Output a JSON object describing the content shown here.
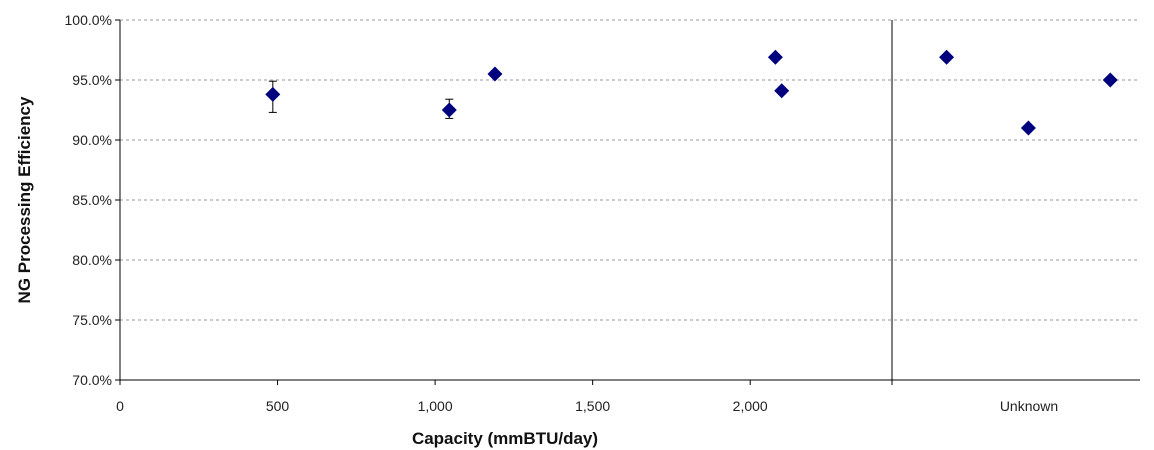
{
  "chart_data": {
    "type": "scatter",
    "xlabel": "Capacity (mmBTU/day)",
    "ylabel": "NG Processing Efficiency",
    "xlim": [
      0,
      2450
    ],
    "ylim": [
      70.0,
      100.0
    ],
    "x_ticks": [
      0,
      500,
      1000,
      1500,
      2000
    ],
    "x_tick_labels": [
      "0",
      "500",
      "1,000",
      "1,500",
      "2,000"
    ],
    "y_ticks": [
      70.0,
      75.0,
      80.0,
      85.0,
      90.0,
      95.0,
      100.0
    ],
    "y_tick_labels": [
      "70.0%",
      "75.0%",
      "80.0%",
      "85.0%",
      "90.0%",
      "95.0%",
      "100.0%"
    ],
    "grid": true,
    "marker": "diamond",
    "marker_color": "#00007f",
    "points": [
      {
        "x": 485,
        "y": 93.8,
        "err_low": 92.3,
        "err_high": 94.9
      },
      {
        "x": 1045,
        "y": 92.5,
        "err_low": 91.8,
        "err_high": 93.4
      },
      {
        "x": 1190,
        "y": 95.5
      },
      {
        "x": 2080,
        "y": 96.9
      },
      {
        "x": 2100,
        "y": 94.1
      }
    ],
    "unknown_section": {
      "label": "Unknown",
      "values": [
        96.9,
        91.0,
        95.0
      ]
    }
  }
}
